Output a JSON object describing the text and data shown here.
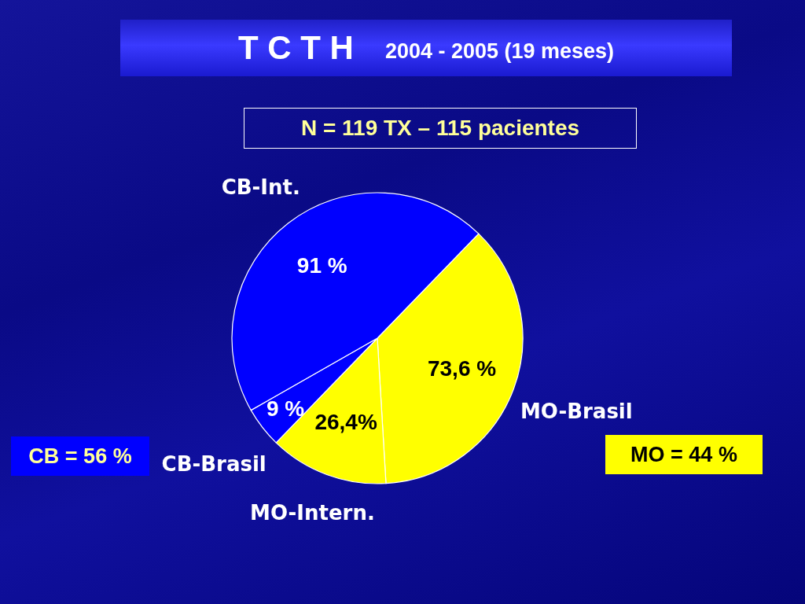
{
  "chart_data": {
    "type": "pie",
    "title": "T C T H",
    "subtitle": "2004 - 2005 (19 meses)",
    "categories": [
      "MO-Brasil",
      "MO-Intern.",
      "CB-Brasil",
      "CB-Int."
    ],
    "values": [
      73.6,
      26.4,
      9,
      91
    ],
    "colors": [
      "#ffff00",
      "#ffff00",
      "#0000ff",
      "#0000ff"
    ],
    "value_labels": [
      "73,6 %",
      "26,4%",
      "9 %",
      "91 %"
    ],
    "annotations": [
      "N = 119 TX – 115 pacientes",
      "CB = 56 %",
      "MO = 44 %"
    ]
  }
}
